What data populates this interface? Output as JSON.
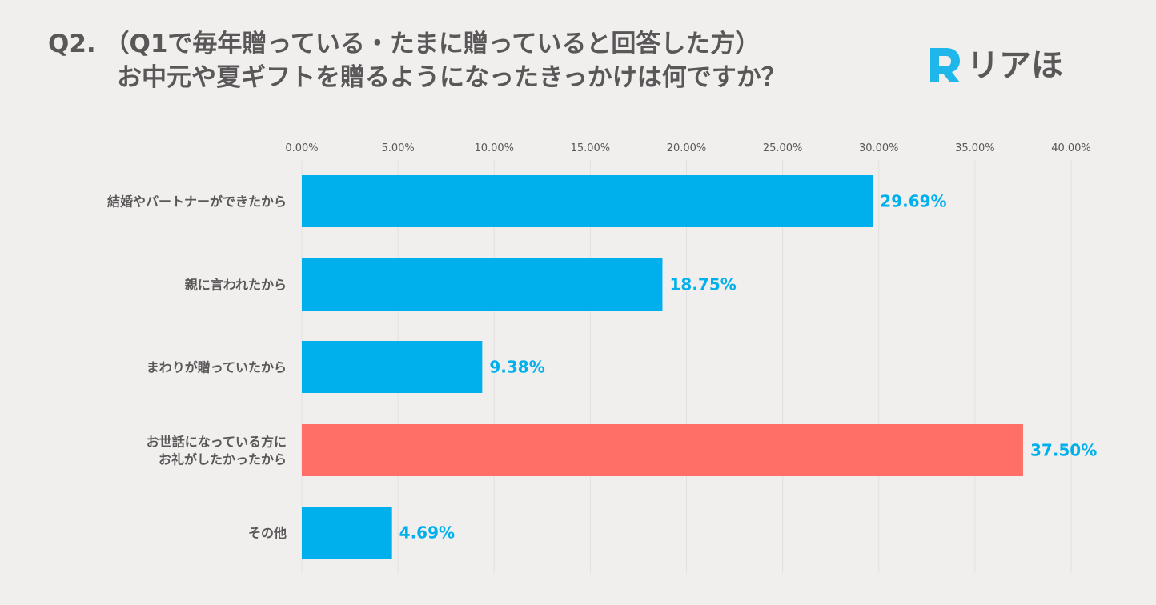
{
  "title": {
    "line1": "Q2. （Q1で毎年贈っている・たまに贈っていると回答した方）",
    "line2": "お中元や夏ギフトを贈るようになったきっかけは何ですか？"
  },
  "logo": {
    "text": "リアほ",
    "mark_letter": "R",
    "color": "#1fb7ea"
  },
  "colors": {
    "bar_default": "#00b0ec",
    "bar_highlight": "#ff6f67",
    "label_default": "#00b0ec",
    "label_highlight": "#00b0ec",
    "grid": "#e2e0de",
    "text": "#595757",
    "background": "#f0efee"
  },
  "chart_data": {
    "type": "bar",
    "orientation": "horizontal",
    "title": "お中元や夏ギフトを贈るようになったきっかけは何ですか？",
    "xlim": [
      0,
      40
    ],
    "x_ticks": [
      {
        "value": 0,
        "label": "0.00%"
      },
      {
        "value": 5,
        "label": "5.00%"
      },
      {
        "value": 10,
        "label": "10.00%"
      },
      {
        "value": 15,
        "label": "15.00%"
      },
      {
        "value": 20,
        "label": "20.00%"
      },
      {
        "value": 25,
        "label": "25.00%"
      },
      {
        "value": 30,
        "label": "30.00%"
      },
      {
        "value": 35,
        "label": "35.00%"
      },
      {
        "value": 40,
        "label": "40.00%"
      }
    ],
    "axis_position": "top",
    "grid": true,
    "bars": [
      {
        "category": [
          "結婚やパートナーができたから"
        ],
        "value": 29.69,
        "label": "29.69%",
        "highlight": false
      },
      {
        "category": [
          "親に言われたから"
        ],
        "value": 18.75,
        "label": "18.75%",
        "highlight": false
      },
      {
        "category": [
          "まわりが贈っていたから"
        ],
        "value": 9.38,
        "label": "9.38%",
        "highlight": false
      },
      {
        "category": [
          "お世話になっている方に",
          "お礼がしたかったから"
        ],
        "value": 37.5,
        "label": "37.50%",
        "highlight": true
      },
      {
        "category": [
          "その他"
        ],
        "value": 4.69,
        "label": "4.69%",
        "highlight": false
      }
    ]
  }
}
